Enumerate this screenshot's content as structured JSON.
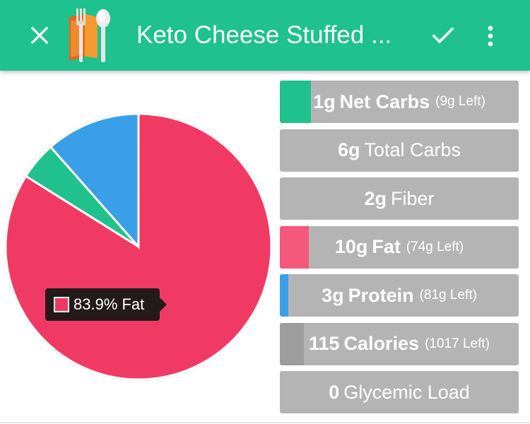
{
  "app_bar": {
    "title": "Keto Cheese Stuffed ...",
    "close_icon": "close-icon",
    "logo_icon": "fork-knife-spoon-logo-icon",
    "save_icon": "check-icon",
    "menu_icon": "more-vert-icon",
    "color": "#1fc18c"
  },
  "macros": [
    {
      "amount": "1g",
      "name": "Net Carbs",
      "bold_name": true,
      "left": "(9g Left)",
      "fill_fraction": 0.13,
      "fill_color": "#1fc18c"
    },
    {
      "amount": "6g",
      "name": "Total Carbs",
      "bold_name": false,
      "left": "",
      "fill_fraction": 0,
      "fill_color": "#9e9d9d"
    },
    {
      "amount": "2g",
      "name": "Fiber",
      "bold_name": false,
      "left": "",
      "fill_fraction": 0,
      "fill_color": "#9e9d9d"
    },
    {
      "amount": "10g",
      "name": "Fat",
      "bold_name": true,
      "left": "(74g Left)",
      "fill_fraction": 0.12,
      "fill_color": "#f4587a"
    },
    {
      "amount": "3g",
      "name": "Protein",
      "bold_name": true,
      "left": "(81g Left)",
      "fill_fraction": 0.035,
      "fill_color": "#399fe8"
    },
    {
      "amount": "115",
      "name": "Calories",
      "bold_name": true,
      "left": "(1017 Left)",
      "fill_fraction": 0.1,
      "fill_color": "#9e9d9d"
    },
    {
      "amount": "0",
      "name": "Glycemic Load",
      "bold_name": false,
      "left": "",
      "fill_fraction": 0,
      "fill_color": "#9e9d9d"
    }
  ],
  "tooltip": {
    "text": "83.9% Fat",
    "swatch_color": "#f03a64"
  },
  "chart_data": {
    "type": "pie",
    "slices": [
      {
        "label": "Fat",
        "percent": 83.9,
        "color": "#f03a64"
      },
      {
        "label": "Net Carbs",
        "percent": 4.6,
        "color": "#1fc18c"
      },
      {
        "label": "Protein",
        "percent": 11.5,
        "color": "#399fe8"
      }
    ]
  }
}
